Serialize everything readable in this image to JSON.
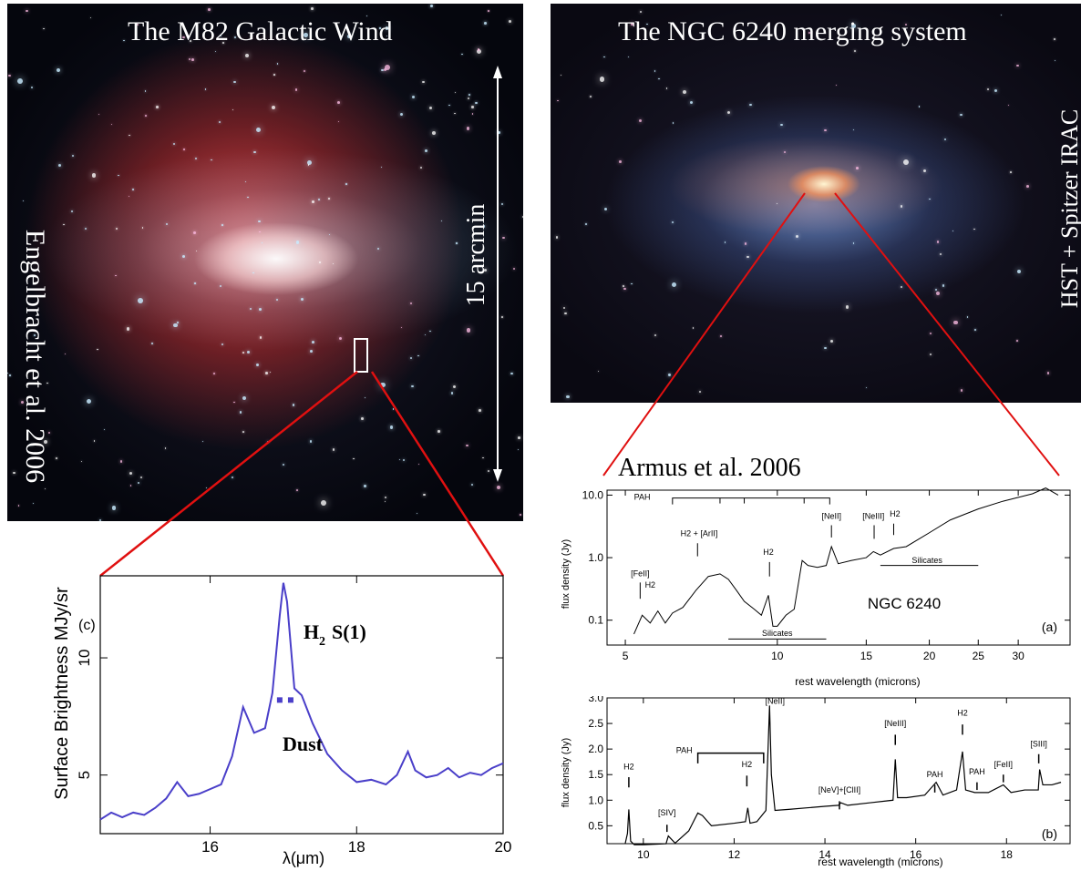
{
  "m82_image": {
    "title": "The M82 Galactic Wind",
    "credit": "Engelbracht et al. 2006",
    "scale_label": "15 arcmin"
  },
  "ngc_image": {
    "title": "The NGC 6240 merging system",
    "credit": "HST + Spitzer IRAC"
  },
  "armus_credit": "Armus et al. 2006",
  "chart_data": [
    {
      "id": "m82-spectrum",
      "type": "line",
      "panel_label": "(c)",
      "xlabel": "λ(μm)",
      "ylabel": "Surface Brightness MJy/sr",
      "xlim": [
        14.5,
        20
      ],
      "ylim": [
        2.5,
        13.5
      ],
      "xticks": [
        16,
        18,
        20
      ],
      "yticks": [
        5,
        10
      ],
      "annotations": [
        "S(1)",
        "Dust"
      ],
      "annotation_h2": "H",
      "annotation_h2_sub": "2",
      "color": "#4a3fc9",
      "x": [
        14.5,
        14.65,
        14.8,
        14.95,
        15.1,
        15.25,
        15.4,
        15.55,
        15.7,
        15.85,
        16.0,
        16.15,
        16.3,
        16.45,
        16.6,
        16.75,
        16.85,
        16.95,
        17.0,
        17.05,
        17.15,
        17.25,
        17.4,
        17.6,
        17.8,
        18.0,
        18.2,
        18.4,
        18.55,
        18.7,
        18.8,
        18.95,
        19.1,
        19.25,
        19.4,
        19.55,
        19.7,
        19.85,
        20.0
      ],
      "y": [
        3.1,
        3.4,
        3.2,
        3.4,
        3.3,
        3.6,
        4.0,
        4.7,
        4.1,
        4.2,
        4.4,
        4.6,
        5.8,
        7.9,
        6.8,
        7.0,
        8.5,
        11.8,
        13.2,
        12.4,
        8.7,
        8.4,
        7.2,
        5.9,
        5.2,
        4.7,
        4.8,
        4.6,
        5.0,
        6.0,
        5.2,
        4.9,
        5.0,
        5.3,
        4.9,
        5.1,
        5.0,
        5.3,
        5.5
      ],
      "marker_x": [
        16.95,
        17.1
      ],
      "marker_y": [
        8.2,
        8.2
      ]
    },
    {
      "id": "ngc-spectrum-a",
      "type": "line",
      "panel_label": "(a)",
      "xlabel": "rest wavelength (microns)",
      "ylabel": "flux density (Jy)",
      "yscale": "log",
      "xscale": "log",
      "xlim": [
        4.6,
        38
      ],
      "ylim": [
        0.04,
        12.0
      ],
      "xticks": [
        5,
        10,
        15,
        20,
        25,
        30
      ],
      "yticks": [
        0.1,
        1.0,
        10.0
      ],
      "yticklabels": [
        "0.1",
        "1.0",
        "10.0"
      ],
      "object_label": "NGC 6240",
      "labels": [
        "PAH",
        "[FeII]",
        "H2",
        "H2 + [ArII]",
        "H2",
        "[NeII]",
        "[NeIII]",
        "H2",
        "Silicates",
        "Silicates"
      ],
      "x": [
        5.2,
        5.4,
        5.6,
        5.8,
        6.0,
        6.2,
        6.5,
        6.9,
        7.3,
        7.7,
        8.0,
        8.3,
        8.6,
        9.0,
        9.3,
        9.6,
        9.8,
        10.0,
        10.4,
        10.8,
        11.2,
        11.5,
        12.0,
        12.5,
        12.8,
        13.2,
        14.0,
        15.0,
        15.5,
        16.0,
        17.0,
        18.0,
        20.0,
        22.0,
        25.0,
        28.0,
        32.0,
        34.0,
        36.0
      ],
      "y": [
        0.06,
        0.12,
        0.09,
        0.14,
        0.09,
        0.13,
        0.16,
        0.3,
        0.5,
        0.55,
        0.45,
        0.3,
        0.2,
        0.15,
        0.12,
        0.25,
        0.08,
        0.08,
        0.12,
        0.15,
        0.9,
        0.75,
        0.7,
        0.75,
        1.5,
        0.8,
        0.9,
        1.0,
        1.25,
        1.1,
        1.4,
        1.5,
        2.5,
        4.0,
        6.0,
        8.0,
        10.5,
        13.0,
        10.0
      ]
    },
    {
      "id": "ngc-spectrum-b",
      "type": "line",
      "panel_label": "(b)",
      "xlabel": "rest wavelength (microns)",
      "ylabel": "flux density (Jy)",
      "xlim": [
        9.2,
        19.4
      ],
      "ylim": [
        0.15,
        3.0
      ],
      "xticks": [
        10,
        12,
        14,
        16,
        18
      ],
      "yticks": [
        0.5,
        1.0,
        1.5,
        2.0,
        2.5,
        3.0
      ],
      "yticklabels": [
        "0.5",
        "1.0",
        "1.5",
        "2.0",
        "2.5",
        "3.0"
      ],
      "labels": [
        "H2",
        "[SIV]",
        "PAH",
        "H2",
        "[NeII]",
        "[NeV]+[ClII]",
        "[NeIII]",
        "PAH",
        "H2",
        "PAH",
        "[FeII]",
        "[SIII]"
      ],
      "x": [
        9.6,
        9.65,
        9.68,
        9.72,
        9.8,
        10.0,
        10.3,
        10.5,
        10.55,
        10.7,
        11.0,
        11.2,
        11.3,
        11.5,
        12.0,
        12.25,
        12.3,
        12.35,
        12.5,
        12.7,
        12.78,
        12.82,
        12.9,
        13.2,
        13.6,
        14.0,
        14.3,
        14.35,
        14.5,
        15.0,
        15.5,
        15.55,
        15.6,
        15.8,
        16.2,
        16.45,
        16.6,
        16.9,
        17.03,
        17.1,
        17.3,
        17.6,
        17.93,
        18.1,
        18.4,
        18.7,
        18.73,
        18.8,
        19.0,
        19.2
      ],
      "y": [
        0.15,
        0.35,
        0.82,
        0.2,
        0.13,
        0.13,
        0.14,
        0.15,
        0.3,
        0.16,
        0.4,
        0.75,
        0.7,
        0.5,
        0.55,
        0.58,
        0.85,
        0.55,
        0.58,
        0.8,
        2.85,
        1.5,
        0.8,
        0.82,
        0.85,
        0.88,
        0.9,
        0.95,
        0.9,
        0.95,
        1.0,
        1.8,
        1.05,
        1.05,
        1.1,
        1.35,
        1.1,
        1.2,
        1.95,
        1.2,
        1.15,
        1.15,
        1.3,
        1.15,
        1.2,
        1.2,
        1.6,
        1.3,
        1.3,
        1.35
      ]
    }
  ]
}
